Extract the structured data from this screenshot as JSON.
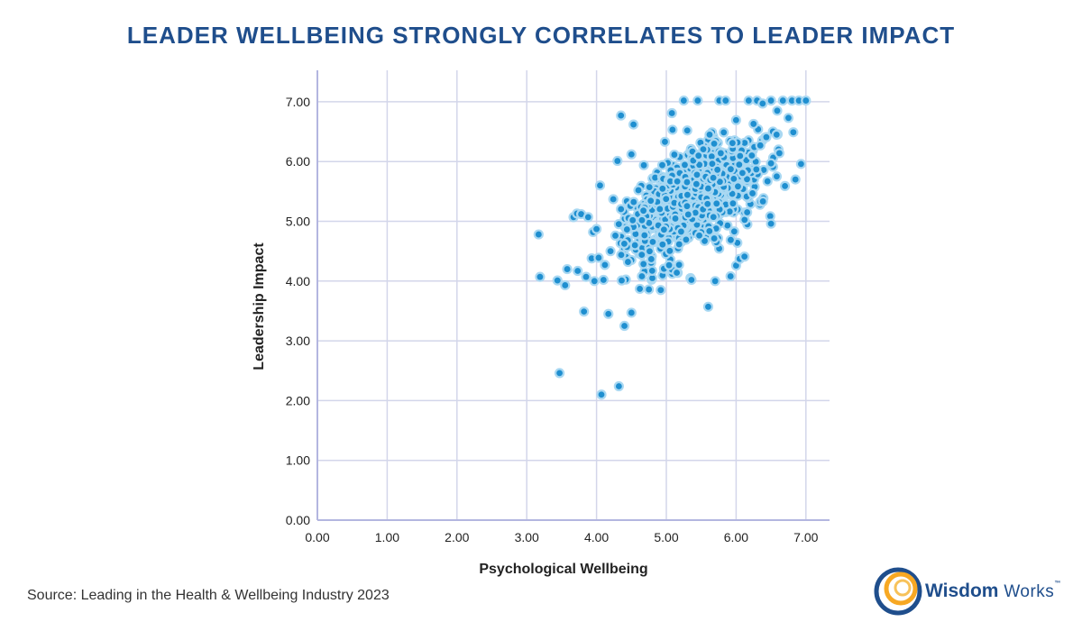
{
  "title": "LEADER WELLBEING STRONGLY CORRELATES TO LEADER IMPACT",
  "source": "Source: Leading in the Health & Wellbeing Industry 2023",
  "logo": {
    "word1": "Wisdom",
    "word2": "Works",
    "tm": "™"
  },
  "colors": {
    "title": "#1f4e8c",
    "point_fill": "#1f8fd0",
    "point_halo": "#a9d8f2",
    "grid": "#d3d6ea",
    "axis": "#b3b6e0"
  },
  "chart_data": {
    "type": "scatter",
    "xlabel": "Psychological Wellbeing",
    "ylabel": "Leadership Impact",
    "xlim": [
      0,
      7.5
    ],
    "ylim": [
      0,
      7.5
    ],
    "x_ticks": [
      "0.00",
      "1.00",
      "2.00",
      "3.00",
      "4.00",
      "5.00",
      "6.00",
      "7.00"
    ],
    "y_ticks": [
      "0.00",
      "1.00",
      "2.00",
      "3.00",
      "4.00",
      "5.00",
      "6.00",
      "7.00"
    ],
    "grid": true,
    "legend": "none",
    "points": [
      [
        3.17,
        4.78
      ],
      [
        3.19,
        4.07
      ],
      [
        3.44,
        4.01
      ],
      [
        3.47,
        2.46
      ],
      [
        3.55,
        3.93
      ],
      [
        3.58,
        4.2
      ],
      [
        3.67,
        5.07
      ],
      [
        3.72,
        5.13
      ],
      [
        3.73,
        4.17
      ],
      [
        3.78,
        5.12
      ],
      [
        3.82,
        3.49
      ],
      [
        3.85,
        4.07
      ],
      [
        3.88,
        5.07
      ],
      [
        3.93,
        4.38
      ],
      [
        3.95,
        4.82
      ],
      [
        3.97,
        4.0
      ],
      [
        4.0,
        4.87
      ],
      [
        4.03,
        4.39
      ],
      [
        4.05,
        5.6
      ],
      [
        4.07,
        2.1
      ],
      [
        4.1,
        4.02
      ],
      [
        4.12,
        4.27
      ],
      [
        4.17,
        3.45
      ],
      [
        4.2,
        4.5
      ],
      [
        4.24,
        5.37
      ],
      [
        4.27,
        4.76
      ],
      [
        4.3,
        6.01
      ],
      [
        4.32,
        2.24
      ],
      [
        4.35,
        6.77
      ],
      [
        4.36,
        4.01
      ],
      [
        4.4,
        3.25
      ],
      [
        4.45,
        4.32
      ],
      [
        4.5,
        3.47
      ],
      [
        4.5,
        6.12
      ],
      [
        4.53,
        6.62
      ],
      [
        4.55,
        4.6
      ],
      [
        4.6,
        5.52
      ],
      [
        4.62,
        3.87
      ],
      [
        4.65,
        4.08
      ],
      [
        4.75,
        3.86
      ],
      [
        4.92,
        3.85
      ],
      [
        4.98,
        6.33
      ],
      [
        5.08,
        6.81
      ],
      [
        5.15,
        4.14
      ],
      [
        5.25,
        7.02
      ],
      [
        5.3,
        6.52
      ],
      [
        5.36,
        4.02
      ],
      [
        5.45,
        7.02
      ],
      [
        5.6,
        3.57
      ],
      [
        5.62,
        6.45
      ],
      [
        5.7,
        4.0
      ],
      [
        5.76,
        7.02
      ],
      [
        5.78,
        6.14
      ],
      [
        5.85,
        7.02
      ],
      [
        5.92,
        4.08
      ],
      [
        6.0,
        4.26
      ],
      [
        6.05,
        4.37
      ],
      [
        6.12,
        4.41
      ],
      [
        6.18,
        7.02
      ],
      [
        6.25,
        6.63
      ],
      [
        6.3,
        7.02
      ],
      [
        6.38,
        6.97
      ],
      [
        6.45,
        5.67
      ],
      [
        6.5,
        7.02
      ],
      [
        6.5,
        4.96
      ],
      [
        6.58,
        6.45
      ],
      [
        6.62,
        6.14
      ],
      [
        6.67,
        7.02
      ],
      [
        6.7,
        5.59
      ],
      [
        6.75,
        6.73
      ],
      [
        6.8,
        7.02
      ],
      [
        6.82,
        6.49
      ],
      [
        6.85,
        5.7
      ],
      [
        6.9,
        7.02
      ],
      [
        6.93,
        5.96
      ],
      [
        7.0,
        7.02
      ]
    ],
    "cluster": {
      "points_in_dense_region": 760,
      "x_range": [
        4.3,
        6.7
      ],
      "y_range": [
        4.0,
        7.0
      ],
      "center": [
        5.35,
        5.35
      ]
    }
  }
}
